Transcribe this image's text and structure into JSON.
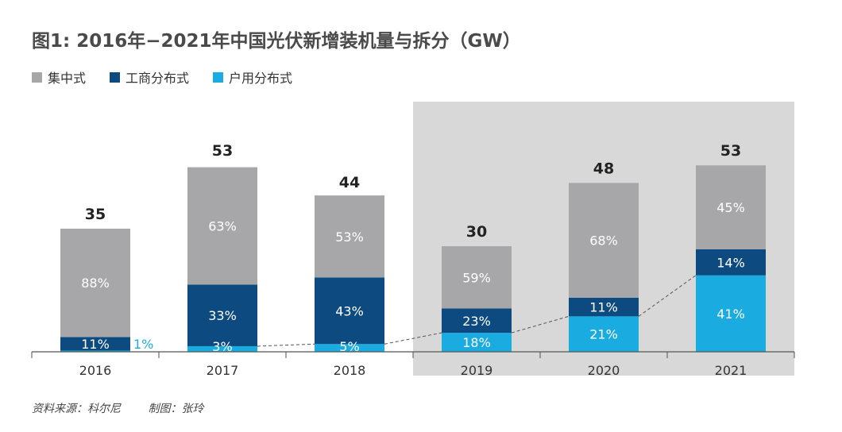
{
  "chart_data": {
    "type": "bar",
    "stacked": true,
    "title": "图1: 2016年−2021年中国光伏新增装机量与拆分（GW）",
    "categories": [
      "2016",
      "2017",
      "2018",
      "2019",
      "2020",
      "2021"
    ],
    "totals": [
      35,
      53,
      44,
      30,
      48,
      53
    ],
    "series": [
      {
        "name": "户用分布式",
        "color": "#1aace0",
        "percents": [
          1,
          3,
          5,
          18,
          21,
          41
        ],
        "labels": [
          "1%",
          "3%",
          "5%",
          "18%",
          "21%",
          "41%"
        ]
      },
      {
        "name": "工商分布式",
        "color": "#0d4a7f",
        "percents": [
          11,
          33,
          43,
          23,
          11,
          14
        ],
        "labels": [
          "11%",
          "33%",
          "43%",
          "23%",
          "11%",
          "14%"
        ]
      },
      {
        "name": "集中式",
        "color": "#a7a7aa",
        "percents": [
          88,
          63,
          53,
          59,
          68,
          45
        ],
        "labels": [
          "88%",
          "63%",
          "53%",
          "59%",
          "68%",
          "45%"
        ]
      }
    ],
    "legend_order": [
      "集中式",
      "工商分布式",
      "户用分布式"
    ],
    "highlight_categories": [
      "2019",
      "2020",
      "2021"
    ],
    "ylim": [
      0,
      60
    ],
    "grid": false,
    "legend_position": "top-left"
  },
  "colors": {
    "highlight_bg": "#d8d8d8",
    "axis": "#555555",
    "dashed_line": "#555555"
  },
  "footer": {
    "source": "资料来源：科尔尼",
    "made_by": "制图：张玲"
  }
}
